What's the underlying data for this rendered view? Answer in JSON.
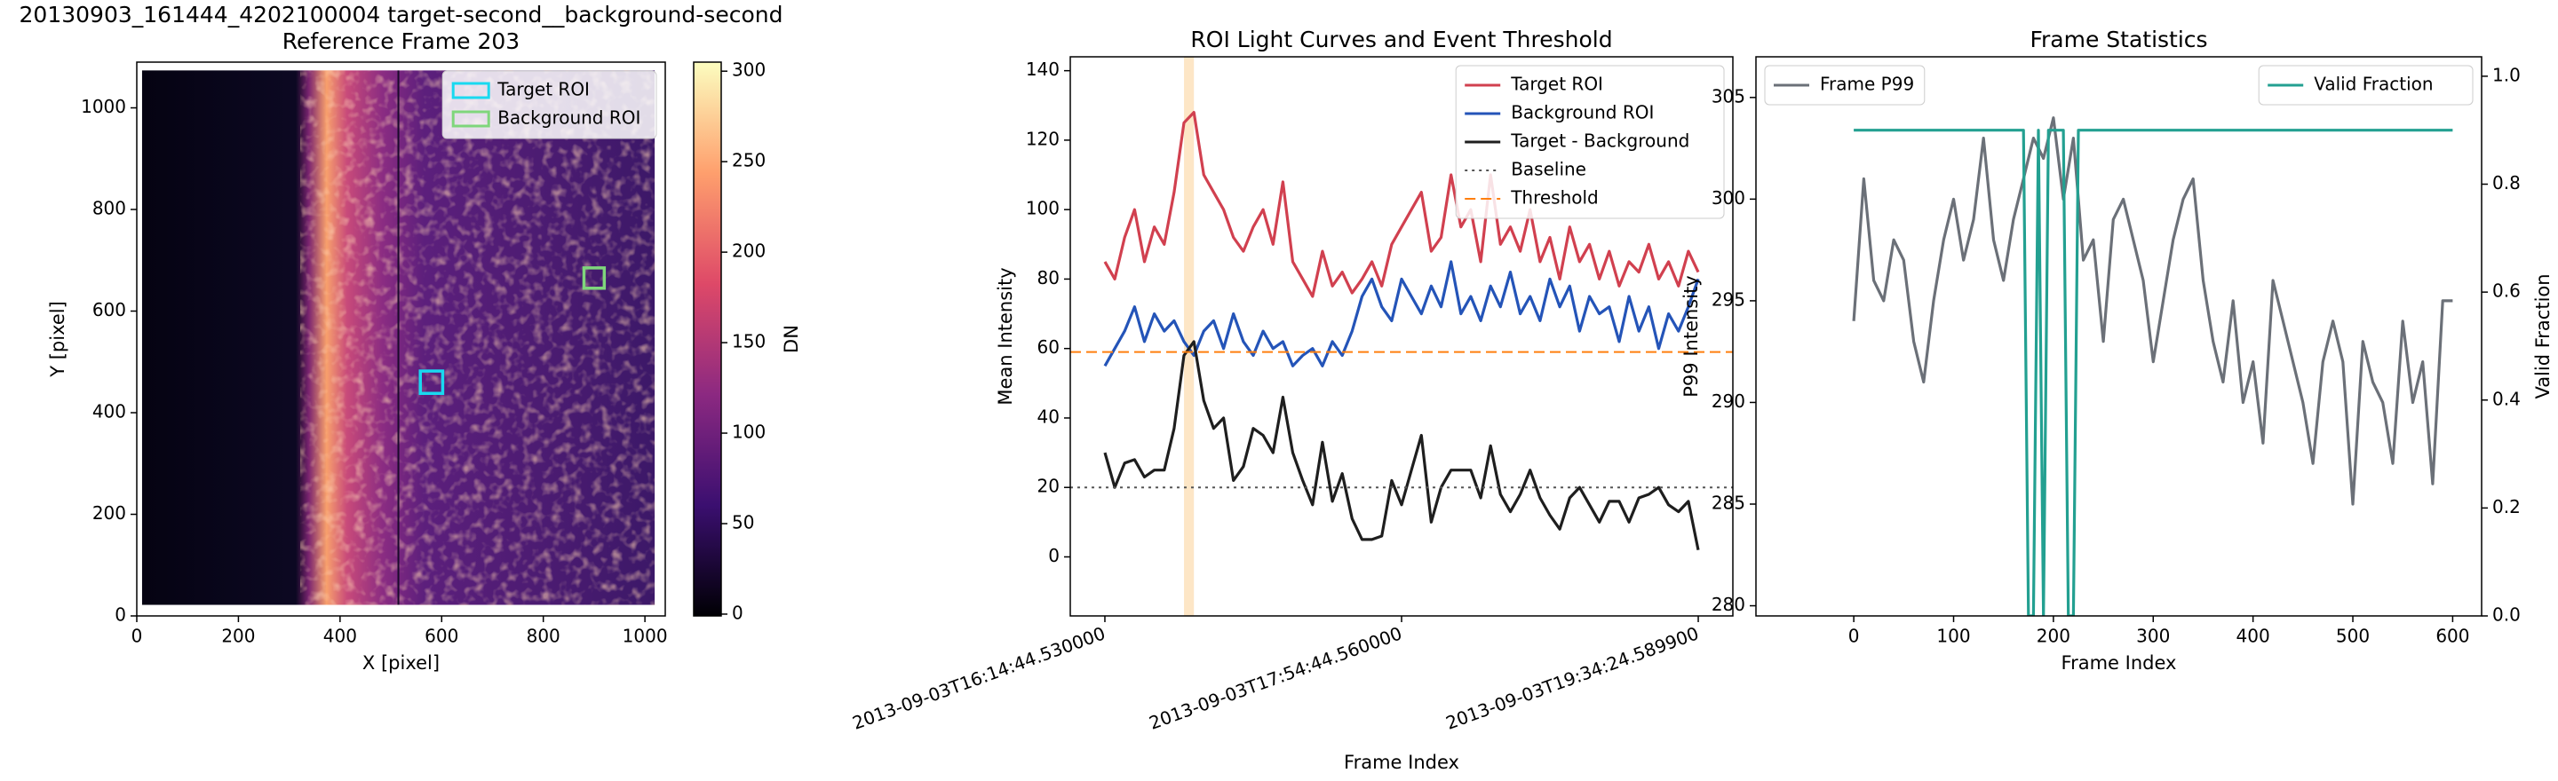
{
  "chart_data": [
    {
      "type": "image",
      "title": "20130903_161444_4202100004 target-second__background-second",
      "subtitle": "Reference Frame 203",
      "xlabel": "X [pixel]",
      "ylabel": "Y [pixel]",
      "xlim": [
        0,
        1040
      ],
      "ylim": [
        0,
        1090
      ],
      "xticks": [
        0,
        200,
        400,
        600,
        800,
        1000
      ],
      "yticks": [
        0,
        200,
        400,
        600,
        800,
        1000
      ],
      "legend": "upper right",
      "rois": [
        {
          "name": "Target ROI",
          "color": "#19d9f0",
          "x": 558,
          "y": 438,
          "size": 44
        },
        {
          "name": "Background ROI",
          "color": "#7fd67c",
          "x": 880,
          "y": 645,
          "size": 40
        }
      ],
      "colorbar": {
        "label": "DN",
        "lim": [
          -1,
          305
        ],
        "ticks": [
          0,
          50,
          100,
          150,
          200,
          250,
          300
        ]
      }
    },
    {
      "type": "line",
      "title": "ROI Light Curves and Event Threshold",
      "xlabel": "Frame Index",
      "ylabel": "Mean Intensity",
      "x": [
        0,
        10,
        20,
        30,
        40,
        50,
        60,
        70,
        80,
        90,
        100,
        110,
        120,
        130,
        140,
        150,
        160,
        170,
        180,
        190,
        200,
        210,
        220,
        230,
        240,
        250,
        260,
        270,
        280,
        290,
        300,
        310,
        320,
        330,
        340,
        350,
        360,
        370,
        380,
        390,
        400,
        410,
        420,
        430,
        440,
        450,
        460,
        470,
        480,
        490,
        500,
        510,
        520,
        530,
        540,
        550,
        560,
        570,
        580,
        590,
        600
      ],
      "xlim": [
        -35,
        635
      ],
      "ylim": [
        -17,
        144
      ],
      "xticks": [
        {
          "value": 0,
          "label": "2013-09-03T16:14:44.530000"
        },
        {
          "value": 300,
          "label": "2013-09-03T17:54:44.560000"
        },
        {
          "value": 600,
          "label": "2013-09-03T19:34:24.589900"
        }
      ],
      "xtick_rotation": 20,
      "yticks": [
        0,
        20,
        40,
        60,
        80,
        100,
        120,
        140
      ],
      "legend": "upper right",
      "event_span": [
        80,
        90
      ],
      "event_color": "#fde6c6",
      "series": [
        {
          "name": "Target ROI",
          "color": "#d1404f",
          "values": [
            85,
            80,
            92,
            100,
            85,
            95,
            90,
            105,
            125,
            128,
            110,
            105,
            100,
            92,
            88,
            95,
            100,
            90,
            108,
            85,
            80,
            75,
            88,
            78,
            82,
            76,
            80,
            85,
            78,
            90,
            95,
            100,
            105,
            88,
            92,
            110,
            95,
            100,
            85,
            110,
            90,
            95,
            88,
            100,
            85,
            92,
            80,
            95,
            85,
            90,
            80,
            88,
            78,
            85,
            82,
            90,
            80,
            85,
            78,
            88,
            82
          ]
        },
        {
          "name": "Background ROI",
          "color": "#2454b8",
          "values": [
            55,
            60,
            65,
            72,
            62,
            70,
            65,
            68,
            62,
            58,
            65,
            68,
            60,
            70,
            62,
            58,
            65,
            60,
            62,
            55,
            58,
            60,
            55,
            62,
            58,
            65,
            75,
            80,
            72,
            68,
            80,
            75,
            70,
            78,
            72,
            85,
            70,
            75,
            68,
            78,
            72,
            82,
            70,
            75,
            68,
            80,
            72,
            78,
            65,
            75,
            70,
            72,
            62,
            75,
            65,
            72,
            60,
            70,
            65,
            72,
            80
          ]
        },
        {
          "name": "Target - Background",
          "color": "#1e1e1e",
          "values": [
            30,
            20,
            27,
            28,
            23,
            25,
            25,
            37,
            58,
            62,
            45,
            37,
            40,
            22,
            26,
            37,
            35,
            30,
            46,
            30,
            22,
            15,
            33,
            16,
            24,
            11,
            5,
            5,
            6,
            22,
            15,
            25,
            35,
            10,
            20,
            25,
            25,
            25,
            17,
            32,
            18,
            13,
            18,
            25,
            17,
            12,
            8,
            17,
            20,
            15,
            10,
            16,
            16,
            10,
            17,
            18,
            20,
            15,
            13,
            16,
            2
          ]
        }
      ],
      "reference_lines": [
        {
          "name": "Baseline",
          "value": 20,
          "color": "#555555",
          "style": "dotted"
        },
        {
          "name": "Threshold",
          "value": 59,
          "color": "#ff7f0e",
          "style": "dashed"
        }
      ]
    },
    {
      "type": "line",
      "title": "Frame Statistics",
      "xlabel": "Frame Index",
      "ylabel": "P99 Intensity",
      "y2label": "Valid Fraction",
      "xlim": [
        -98,
        629
      ],
      "ylim": [
        279.5,
        307
      ],
      "y2lim": [
        0,
        1.036
      ],
      "xticks": [
        0,
        100,
        200,
        300,
        400,
        500,
        600
      ],
      "yticks": [
        280,
        285,
        290,
        295,
        300,
        305
      ],
      "y2ticks": [
        {
          "value": 0,
          "label": "0.0"
        },
        0.2,
        0.4,
        0.6,
        0.8,
        {
          "value": 1,
          "label": "1.0"
        }
      ],
      "series": [
        {
          "name": "Frame P99",
          "color": "#6b7078",
          "legend": "upper left",
          "x": [
            0,
            10,
            20,
            30,
            40,
            50,
            60,
            70,
            80,
            90,
            100,
            110,
            120,
            130,
            140,
            150,
            160,
            170,
            180,
            190,
            200,
            210,
            220,
            230,
            240,
            250,
            260,
            270,
            280,
            290,
            300,
            310,
            320,
            330,
            340,
            350,
            360,
            370,
            380,
            390,
            400,
            410,
            420,
            430,
            440,
            450,
            460,
            470,
            480,
            490,
            500,
            510,
            520,
            530,
            540,
            550,
            560,
            570,
            580,
            590,
            600
          ],
          "values": [
            294,
            301,
            296,
            295,
            298,
            297,
            293,
            291,
            295,
            298,
            300,
            297,
            299,
            303,
            298,
            296,
            299,
            301,
            303,
            302,
            304,
            300,
            303,
            297,
            298,
            293,
            299,
            300,
            298,
            296,
            292,
            295,
            298,
            300,
            301,
            296,
            293,
            291,
            295,
            290,
            292,
            288,
            296,
            294,
            292,
            290,
            287,
            292,
            294,
            292,
            285,
            293,
            291,
            290,
            287,
            294,
            290,
            292,
            286,
            295,
            295
          ]
        },
        {
          "name": "Valid Fraction",
          "color": "#23a091",
          "axis": "y2",
          "legend": "upper right",
          "x": [
            0,
            170,
            175,
            180,
            185,
            190,
            195,
            200,
            210,
            215,
            220,
            225,
            230,
            600
          ],
          "values": [
            0.9,
            0.9,
            0,
            0,
            0.9,
            0,
            0.9,
            0.9,
            0.9,
            0,
            0,
            0.9,
            0.9,
            0.9
          ]
        }
      ]
    }
  ]
}
